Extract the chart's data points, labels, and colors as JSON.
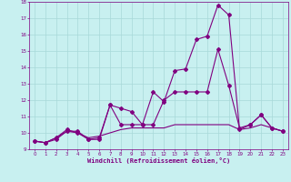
{
  "xlabel": "Windchill (Refroidissement éolien,°C)",
  "background_color": "#c8f0f0",
  "line_color": "#800080",
  "grid_color": "#a8d8d8",
  "x": [
    0,
    1,
    2,
    3,
    4,
    5,
    6,
    7,
    8,
    9,
    10,
    11,
    12,
    13,
    14,
    15,
    16,
    17,
    18,
    19,
    20,
    21,
    22,
    23
  ],
  "line1": [
    9.5,
    9.4,
    9.6,
    10.1,
    10.1,
    9.6,
    9.6,
    11.7,
    11.5,
    11.3,
    10.5,
    12.5,
    11.9,
    13.8,
    13.9,
    15.7,
    15.9,
    17.8,
    17.2,
    10.2,
    10.5,
    11.1,
    10.3,
    10.1
  ],
  "line2": [
    9.5,
    9.4,
    9.7,
    10.2,
    10.0,
    9.6,
    9.7,
    11.7,
    10.5,
    10.5,
    10.5,
    10.5,
    12.0,
    12.5,
    12.5,
    12.5,
    12.5,
    15.1,
    12.9,
    10.3,
    10.5,
    11.1,
    10.3,
    10.1
  ],
  "line3": [
    9.5,
    9.4,
    9.7,
    10.1,
    10.0,
    9.7,
    9.8,
    10.0,
    10.2,
    10.3,
    10.3,
    10.3,
    10.3,
    10.5,
    10.5,
    10.5,
    10.5,
    10.5,
    10.5,
    10.2,
    10.3,
    10.5,
    10.3,
    10.1
  ],
  "ylim": [
    9,
    18
  ],
  "xlim": [
    -0.5,
    23.5
  ],
  "yticks": [
    9,
    10,
    11,
    12,
    13,
    14,
    15,
    16,
    17,
    18
  ],
  "xticks": [
    0,
    1,
    2,
    3,
    4,
    5,
    6,
    7,
    8,
    9,
    10,
    11,
    12,
    13,
    14,
    15,
    16,
    17,
    18,
    19,
    20,
    21,
    22,
    23
  ]
}
